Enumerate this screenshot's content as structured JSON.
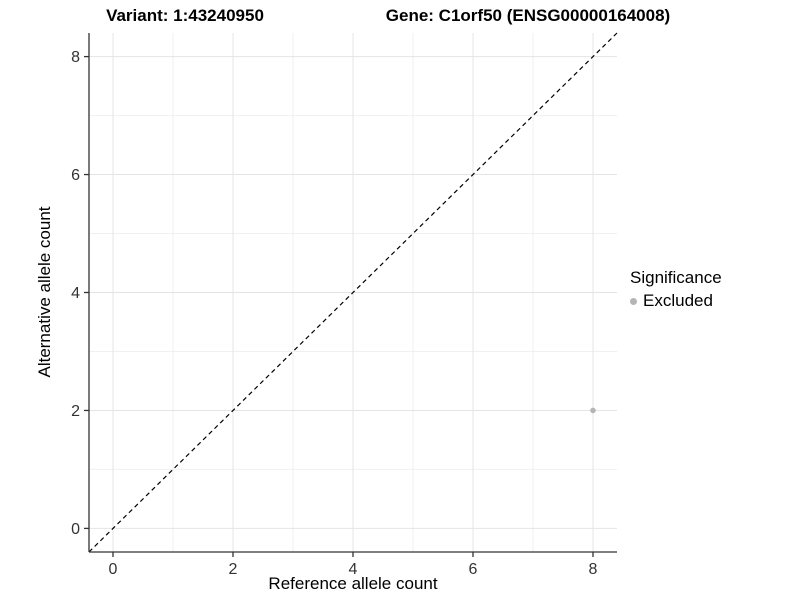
{
  "chart_data": {
    "type": "scatter",
    "title_left": "Variant: 1:43240950",
    "title_right": "Gene: C1orf50 (ENSG00000164008)",
    "xlabel": "Reference allele count",
    "ylabel": "Alternative allele count",
    "xlim": [
      -0.4,
      8.4
    ],
    "ylim": [
      -0.4,
      8.4
    ],
    "x_ticks": [
      0,
      2,
      4,
      6,
      8
    ],
    "y_ticks": [
      0,
      2,
      4,
      6,
      8
    ],
    "x_minor_gridlines": [
      1,
      3,
      5,
      7
    ],
    "y_minor_gridlines": [
      1,
      3,
      5,
      7
    ],
    "grid": "on",
    "identity_line": {
      "style": "dashed",
      "color": "#000000",
      "from": [
        -0.4,
        -0.4
      ],
      "to": [
        8.4,
        8.4
      ]
    },
    "series": [
      {
        "name": "Excluded",
        "color": "#b5b5b5",
        "points": [
          {
            "x": 8,
            "y": 2
          }
        ]
      }
    ],
    "legend_position": "right"
  },
  "legend": {
    "title": "Significance",
    "items": [
      {
        "label": "Excluded",
        "color": "#b5b5b5"
      }
    ]
  },
  "colors": {
    "background": "#ffffff",
    "major_grid": "#e4e4e4",
    "minor_grid": "#f0f0f0",
    "axis_line": "#333333",
    "tick": "#333333",
    "tick_label": "#333333"
  }
}
